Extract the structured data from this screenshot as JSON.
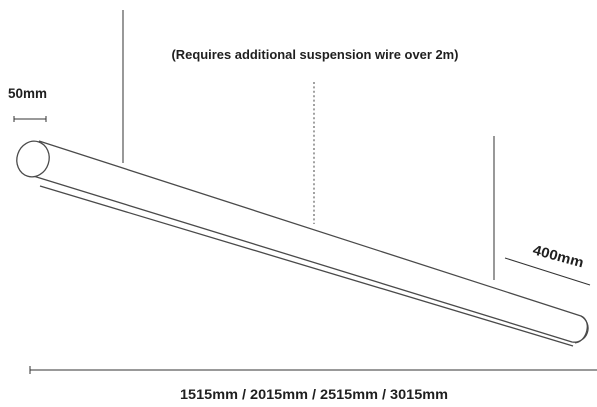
{
  "diagram": {
    "note": "(Requires additional suspension wire over 2m)",
    "diameter_label": "50mm",
    "drop_label": "400mm",
    "length_label": "1515mm / 2015mm / 2515mm / 3015mm"
  },
  "colors": {
    "line": "#4a4a4a",
    "text": "#1f1f1f",
    "dotted_wire": "#8a8a8a"
  }
}
